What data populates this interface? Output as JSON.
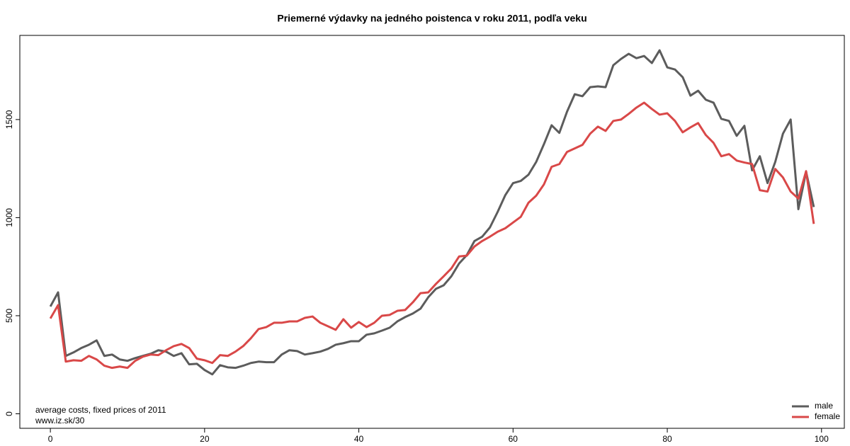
{
  "chart_data": {
    "type": "line",
    "title": "Priemerné výdavky na jedného poistenca v roku 2011, podľa veku",
    "annotations": [
      "average costs, fixed prices of 2011",
      "www.iz.sk/30"
    ],
    "legend": "bottomright",
    "xlim": [
      -3.96,
      102.96
    ],
    "ylim": [
      -74,
      1929
    ],
    "xticks": [
      0,
      20,
      40,
      60,
      80,
      100
    ],
    "yticks": [
      0,
      500,
      1000,
      1500
    ],
    "x": [
      0,
      1,
      2,
      3,
      4,
      5,
      6,
      7,
      8,
      9,
      10,
      11,
      12,
      13,
      14,
      15,
      16,
      17,
      18,
      19,
      20,
      21,
      22,
      23,
      24,
      25,
      26,
      27,
      28,
      29,
      30,
      31,
      32,
      33,
      34,
      35,
      36,
      37,
      38,
      39,
      40,
      41,
      42,
      43,
      44,
      45,
      46,
      47,
      48,
      49,
      50,
      51,
      52,
      53,
      54,
      55,
      56,
      57,
      58,
      59,
      60,
      61,
      62,
      63,
      64,
      65,
      66,
      67,
      68,
      69,
      70,
      71,
      72,
      73,
      74,
      75,
      76,
      77,
      78,
      79,
      80,
      81,
      82,
      83,
      84,
      85,
      86,
      87,
      88,
      89,
      90,
      91,
      92,
      93,
      94,
      95,
      96,
      97,
      98,
      99
    ],
    "series": [
      {
        "name": "male",
        "color": "#5c5c5c",
        "values": [
          547,
          619,
          295,
          313,
          335,
          352,
          374,
          295,
          302,
          277,
          270,
          284,
          295,
          306,
          324,
          317,
          295,
          309,
          252,
          255,
          223,
          201,
          248,
          237,
          234,
          245,
          259,
          266,
          263,
          263,
          302,
          324,
          320,
          302,
          309,
          317,
          331,
          352,
          360,
          370,
          370,
          403,
          410,
          424,
          439,
          471,
          493,
          511,
          536,
          594,
          637,
          655,
          701,
          766,
          809,
          881,
          903,
          950,
          1029,
          1115,
          1176,
          1187,
          1219,
          1284,
          1374,
          1471,
          1432,
          1540,
          1629,
          1619,
          1665,
          1669,
          1665,
          1777,
          1809,
          1835,
          1813,
          1824,
          1788,
          1853,
          1766,
          1755,
          1716,
          1622,
          1647,
          1601,
          1586,
          1504,
          1493,
          1417,
          1468,
          1241,
          1313,
          1176,
          1284,
          1428,
          1500,
          1043,
          1234,
          1054
        ]
      },
      {
        "name": "female",
        "color": "#d94848",
        "values": [
          486,
          554,
          266,
          273,
          270,
          295,
          277,
          245,
          234,
          241,
          234,
          270,
          291,
          302,
          299,
          324,
          345,
          356,
          335,
          281,
          273,
          259,
          299,
          295,
          317,
          345,
          385,
          432,
          442,
          464,
          464,
          471,
          471,
          489,
          496,
          464,
          446,
          428,
          482,
          439,
          468,
          442,
          464,
          500,
          504,
          525,
          529,
          568,
          615,
          619,
          662,
          701,
          741,
          802,
          806,
          853,
          881,
          903,
          928,
          946,
          975,
          1004,
          1076,
          1112,
          1169,
          1259,
          1273,
          1335,
          1353,
          1371,
          1428,
          1464,
          1442,
          1493,
          1500,
          1529,
          1561,
          1586,
          1554,
          1525,
          1532,
          1493,
          1435,
          1460,
          1482,
          1421,
          1381,
          1313,
          1324,
          1291,
          1281,
          1273,
          1140,
          1133,
          1248,
          1205,
          1133,
          1097,
          1237,
          968
        ]
      }
    ]
  }
}
